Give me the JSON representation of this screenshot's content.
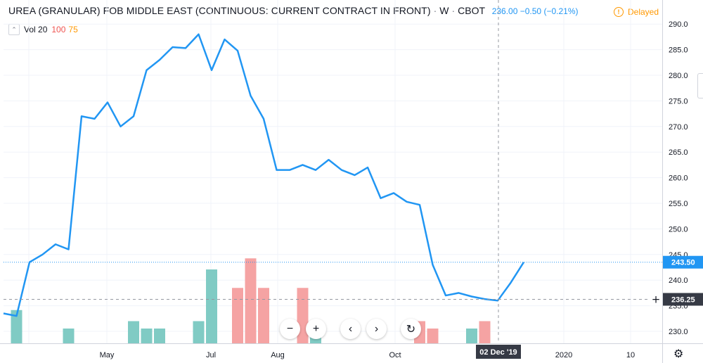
{
  "header": {
    "symbol": "UREA (GRANULAR) FOB MIDDLE EAST (CONTINUOUS: CURRENT CONTRACT IN FRONT)",
    "interval": "W",
    "exchange": "CBOT",
    "last": "236.00",
    "change": "−0.50",
    "change_pct": "(−0.21%)",
    "delayed": "Delayed"
  },
  "volume_legend": {
    "label": "Vol 20",
    "v1": "100",
    "v2": "75"
  },
  "chart_data": {
    "type": "line",
    "yticks": [
      230,
      235,
      240,
      245,
      250,
      255,
      260,
      265,
      270,
      275,
      280,
      285,
      290
    ],
    "ylim": [
      227.5,
      294
    ],
    "x_labels": [
      "May",
      "Jul",
      "Aug",
      "Oct",
      "2020",
      "10"
    ],
    "price_series": [
      233.5,
      233,
      243.5,
      245,
      247,
      246,
      272,
      271.5,
      274.7,
      270,
      272,
      281,
      283,
      285.5,
      285.3,
      288,
      281,
      287,
      284.8,
      276,
      271.5,
      261.5,
      261.5,
      262.5,
      261.5,
      263.5,
      261.5,
      260.5,
      262,
      256,
      257,
      255.3,
      254.7,
      243,
      237,
      237.5,
      236.8,
      236.3,
      236,
      239.5,
      243.5
    ],
    "volume_bars": [
      {
        "index": 1,
        "value": 45,
        "color": "teal"
      },
      {
        "index": 5,
        "value": 20,
        "color": "teal"
      },
      {
        "index": 10,
        "value": 30,
        "color": "teal"
      },
      {
        "index": 11,
        "value": 20,
        "color": "teal"
      },
      {
        "index": 12,
        "value": 20,
        "color": "teal"
      },
      {
        "index": 15,
        "value": 30,
        "color": "teal"
      },
      {
        "index": 16,
        "value": 100,
        "color": "teal"
      },
      {
        "index": 18,
        "value": 75,
        "color": "red"
      },
      {
        "index": 19,
        "value": 115,
        "color": "red"
      },
      {
        "index": 20,
        "value": 75,
        "color": "red"
      },
      {
        "index": 23,
        "value": 75,
        "color": "red"
      },
      {
        "index": 24,
        "value": 18,
        "color": "teal"
      },
      {
        "index": 32,
        "value": 30,
        "color": "red"
      },
      {
        "index": 33,
        "value": 20,
        "color": "red"
      },
      {
        "index": 36,
        "value": 20,
        "color": "teal"
      },
      {
        "index": 37,
        "value": 30,
        "color": "red"
      }
    ],
    "last_price_label": "243.50",
    "crosshair_price_label": "236.25",
    "crosshair_date_label": "02 Dec '19",
    "colors": {
      "line": "#2196f3",
      "vol_up": "#80cbc4",
      "vol_down": "#f5a3a3",
      "axis_text": "#131722",
      "last": "#2196f3",
      "crosshair": "#363a45"
    }
  }
}
